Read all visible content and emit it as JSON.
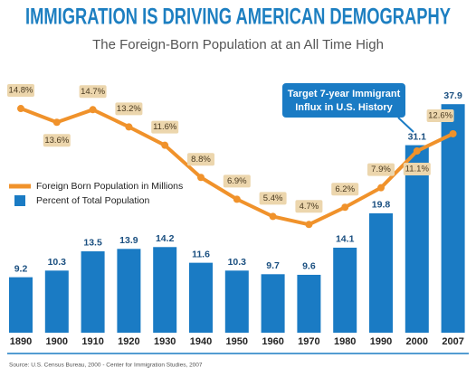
{
  "chart_data": {
    "type": "bar",
    "title": "IMMIGRATION IS DRIVING AMERICAN DEMOGRAPHY",
    "subtitle": "The Foreign-Born Population at an All Time High",
    "categories": [
      "1890",
      "1900",
      "1910",
      "1920",
      "1930",
      "1940",
      "1950",
      "1960",
      "1970",
      "1980",
      "1990",
      "2000",
      "2007"
    ],
    "series": [
      {
        "name": "Foreign Born Population in Millions",
        "color": "#f0922b",
        "type": "line",
        "values": [
          14.8,
          13.6,
          14.7,
          13.2,
          11.6,
          8.8,
          6.9,
          5.4,
          4.7,
          6.2,
          7.9,
          11.1,
          12.6
        ],
        "value_labels": [
          "14.8%",
          "13.6%",
          "14.7%",
          "13.2%",
          "11.6%",
          "8.8%",
          "6.9%",
          "5.4%",
          "4.7%",
          "6.2%",
          "7.9%",
          "11.1%",
          "12.6%"
        ]
      },
      {
        "name": "Percent of Total Population",
        "color": "#1a7bc4",
        "type": "bar",
        "values": [
          9.2,
          10.3,
          13.5,
          13.9,
          14.2,
          11.6,
          10.3,
          9.7,
          9.6,
          14.1,
          19.8,
          31.1,
          37.9
        ]
      }
    ],
    "annotation": [
      "Target 7-year Immigrant",
      "Influx in U.S. History"
    ],
    "source": "Source: U.S. Census Bureau, 2000 - Center for Immigration Studies, 2007"
  }
}
